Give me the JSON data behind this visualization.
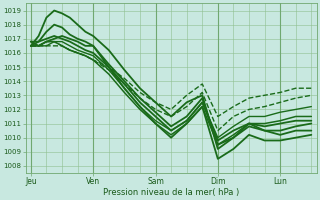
{
  "background_color": "#c8e8e0",
  "grid_color": "#90c090",
  "line_color": "#1a6b1a",
  "ylim": [
    1007.5,
    1019.5
  ],
  "yticks": [
    1008,
    1009,
    1010,
    1011,
    1012,
    1013,
    1014,
    1015,
    1016,
    1017,
    1018,
    1019
  ],
  "xlabel": "Pression niveau de la mer( hPa )",
  "xtick_labels": [
    "Jeu",
    "Ven",
    "Sam",
    "Dim",
    "Lun"
  ],
  "xtick_positions": [
    0,
    24,
    48,
    72,
    96
  ],
  "xlim": [
    -2,
    110
  ],
  "vline_x": [
    0,
    24,
    48,
    72,
    96
  ],
  "lines": [
    {
      "x": [
        0,
        3,
        6,
        9,
        12,
        15,
        18,
        21,
        24,
        30,
        36,
        42,
        48,
        54,
        60,
        66,
        72,
        78,
        84,
        90,
        96,
        102,
        108
      ],
      "y": [
        1016.5,
        1017.2,
        1018.5,
        1019.0,
        1018.8,
        1018.5,
        1018.0,
        1017.5,
        1017.2,
        1016.2,
        1014.8,
        1013.5,
        1012.5,
        1011.5,
        1012.5,
        1013.0,
        1009.2,
        1010.0,
        1011.0,
        1010.5,
        1010.2,
        1010.5,
        1010.5
      ],
      "lw": 1.3
    },
    {
      "x": [
        0,
        3,
        6,
        9,
        12,
        15,
        18,
        21,
        24,
        30,
        36,
        42,
        48,
        54,
        60,
        66,
        72,
        78,
        84,
        90,
        96,
        102,
        108
      ],
      "y": [
        1016.5,
        1016.8,
        1017.5,
        1018.0,
        1017.8,
        1017.3,
        1017.0,
        1016.8,
        1016.5,
        1015.0,
        1013.5,
        1012.2,
        1011.0,
        1010.0,
        1011.0,
        1012.2,
        1008.5,
        1009.2,
        1010.2,
        1009.8,
        1009.8,
        1010.0,
        1010.2
      ],
      "lw": 1.3
    },
    {
      "x": [
        0,
        3,
        6,
        9,
        12,
        15,
        18,
        21,
        24,
        30,
        36,
        42,
        48,
        54,
        60,
        66,
        72,
        78,
        84,
        90,
        96,
        102,
        108
      ],
      "y": [
        1016.8,
        1016.5,
        1016.8,
        1017.0,
        1017.2,
        1017.0,
        1016.8,
        1016.5,
        1016.5,
        1015.2,
        1014.0,
        1012.8,
        1011.8,
        1010.8,
        1011.5,
        1012.8,
        1009.5,
        1010.0,
        1010.8,
        1010.5,
        1010.5,
        1010.8,
        1011.0
      ],
      "lw": 1.3
    },
    {
      "x": [
        0,
        3,
        6,
        9,
        12,
        15,
        18,
        21,
        24,
        30,
        36,
        42,
        48,
        54,
        60,
        66,
        72,
        78,
        84,
        90,
        96,
        102,
        108
      ],
      "y": [
        1016.8,
        1016.8,
        1017.0,
        1017.2,
        1017.0,
        1016.8,
        1016.5,
        1016.2,
        1016.0,
        1015.0,
        1013.8,
        1012.5,
        1011.5,
        1010.5,
        1011.2,
        1012.5,
        1009.8,
        1010.5,
        1011.0,
        1010.8,
        1011.0,
        1011.2,
        1011.2
      ],
      "lw": 1.3
    },
    {
      "x": [
        0,
        3,
        6,
        9,
        12,
        15,
        18,
        21,
        24,
        30,
        36,
        42,
        48,
        54,
        60,
        66,
        72,
        78,
        84,
        90,
        96,
        102,
        108
      ],
      "y": [
        1016.5,
        1016.5,
        1016.8,
        1016.8,
        1016.5,
        1016.2,
        1016.0,
        1015.8,
        1015.5,
        1014.5,
        1013.2,
        1012.0,
        1011.0,
        1010.2,
        1011.0,
        1012.2,
        1009.5,
        1010.2,
        1011.0,
        1011.0,
        1011.2,
        1011.5,
        1011.5
      ],
      "lw": 1.1
    },
    {
      "x": [
        0,
        3,
        6,
        9,
        12,
        15,
        18,
        21,
        24,
        30,
        36,
        42,
        48,
        54,
        60,
        66,
        72,
        78,
        84,
        90,
        96,
        102,
        108
      ],
      "y": [
        1016.5,
        1016.5,
        1016.5,
        1016.8,
        1016.8,
        1016.5,
        1016.2,
        1016.0,
        1015.8,
        1014.8,
        1013.5,
        1012.2,
        1011.2,
        1010.5,
        1011.2,
        1012.5,
        1010.0,
        1010.8,
        1011.5,
        1011.5,
        1011.8,
        1012.0,
        1012.2
      ],
      "lw": 1.0
    },
    {
      "x": [
        0,
        3,
        6,
        9,
        12,
        15,
        18,
        21,
        24,
        30,
        36,
        42,
        48,
        54,
        60,
        66,
        72,
        78,
        84,
        90,
        96,
        102,
        108
      ],
      "y": [
        1016.5,
        1016.5,
        1016.5,
        1016.5,
        1016.5,
        1016.2,
        1016.0,
        1015.8,
        1015.5,
        1014.8,
        1013.8,
        1012.8,
        1012.0,
        1011.5,
        1012.2,
        1013.2,
        1010.5,
        1011.5,
        1012.0,
        1012.2,
        1012.5,
        1012.8,
        1013.0
      ],
      "lw": 1.0,
      "dashed": true
    },
    {
      "x": [
        0,
        3,
        6,
        9,
        12,
        15,
        18,
        21,
        24,
        30,
        36,
        42,
        48,
        54,
        60,
        66,
        72,
        78,
        84,
        90,
        96,
        102,
        108
      ],
      "y": [
        1016.5,
        1016.5,
        1016.8,
        1016.8,
        1016.5,
        1016.2,
        1016.0,
        1015.8,
        1015.5,
        1015.0,
        1014.2,
        1013.2,
        1012.5,
        1012.0,
        1013.0,
        1013.8,
        1011.5,
        1012.2,
        1012.8,
        1013.0,
        1013.2,
        1013.5,
        1013.5
      ],
      "lw": 1.0,
      "dashed": true
    }
  ]
}
